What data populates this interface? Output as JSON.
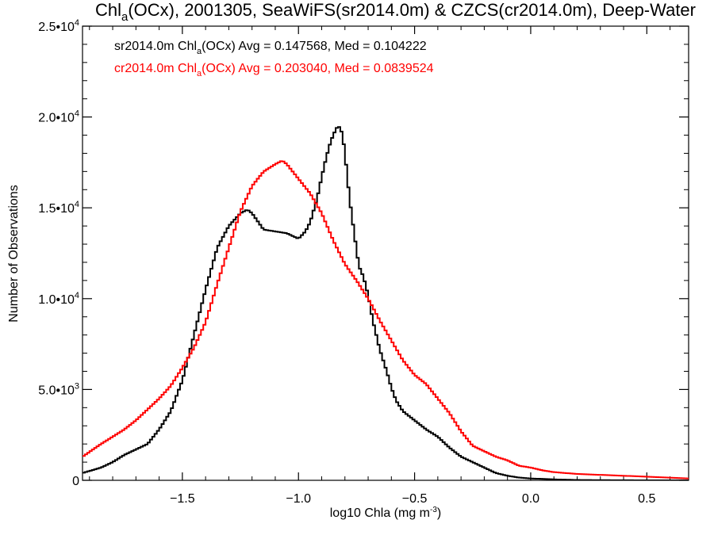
{
  "chart_data": {
    "type": "line",
    "title": {
      "prefix": "Chl",
      "sub": "a",
      "rest": "(OCx), 2001305, SeaWiFS(sr2014.0m) & CZCS(cr2014.0m), Deep-Water"
    },
    "xlabel": {
      "main": "log10 Chla (mg m",
      "sup": "-3",
      "close": ")"
    },
    "ylabel": "Number of Observations",
    "xlim": [
      -1.93,
      0.68
    ],
    "ylim": [
      0,
      25000
    ],
    "grid": false,
    "x_ticks": [
      {
        "value": -1.5,
        "label": "−1.5"
      },
      {
        "value": -1.0,
        "label": "−1.0"
      },
      {
        "value": -0.5,
        "label": "−0.5"
      },
      {
        "value": 0.0,
        "label": "0.0"
      },
      {
        "value": 0.5,
        "label": "0.5"
      }
    ],
    "y_ticks": [
      {
        "value": 0,
        "mant": "0",
        "exp": ""
      },
      {
        "value": 5000,
        "mant": "5.0•10",
        "exp": "3"
      },
      {
        "value": 10000,
        "mant": "1.0•10",
        "exp": "4"
      },
      {
        "value": 15000,
        "mant": "1.5•10",
        "exp": "4"
      },
      {
        "value": 20000,
        "mant": "2.0•10",
        "exp": "4"
      },
      {
        "value": 25000,
        "mant": "2.5•10",
        "exp": "4"
      }
    ],
    "annotations": [
      {
        "color": "#000000",
        "pre": "sr2014.0m Chl",
        "sub": "a",
        "post": "(OCx) Avg = 0.147568, Med = 0.104222"
      },
      {
        "color": "#ff0000",
        "pre": "cr2014.0m Chl",
        "sub": "a",
        "post": "(OCx) Avg = 0.203040, Med = 0.0839524"
      }
    ],
    "series": [
      {
        "color": "#000000",
        "x": [
          -1.93,
          -1.85,
          -1.8,
          -1.75,
          -1.7,
          -1.65,
          -1.6,
          -1.55,
          -1.5,
          -1.45,
          -1.4,
          -1.35,
          -1.3,
          -1.25,
          -1.22,
          -1.2,
          -1.15,
          -1.1,
          -1.05,
          -1.0,
          -0.97,
          -0.95,
          -0.92,
          -0.9,
          -0.88,
          -0.86,
          -0.84,
          -0.83,
          -0.82,
          -0.81,
          -0.8,
          -0.78,
          -0.76,
          -0.74,
          -0.72,
          -0.7,
          -0.68,
          -0.65,
          -0.62,
          -0.6,
          -0.58,
          -0.55,
          -0.52,
          -0.5,
          -0.45,
          -0.4,
          -0.35,
          -0.3,
          -0.25,
          -0.2,
          -0.15,
          -0.1,
          -0.05,
          0.0,
          0.05,
          0.1,
          0.2,
          0.3,
          0.4,
          0.5,
          0.68
        ],
        "values": [
          400,
          700,
          1000,
          1400,
          1700,
          2000,
          2800,
          3800,
          5500,
          8000,
          10500,
          12800,
          14000,
          14700,
          14900,
          14700,
          13800,
          13700,
          13600,
          13300,
          13700,
          14200,
          15500,
          16700,
          17800,
          18700,
          19300,
          19500,
          19400,
          19000,
          18000,
          15500,
          13600,
          11800,
          11200,
          10200,
          8800,
          7200,
          6000,
          5100,
          4400,
          3800,
          3500,
          3300,
          2800,
          2400,
          1800,
          1300,
          1000,
          700,
          400,
          250,
          150,
          100,
          80,
          50,
          20,
          10,
          5,
          0,
          0
        ]
      },
      {
        "color": "#ff0000",
        "x": [
          -1.93,
          -1.85,
          -1.8,
          -1.75,
          -1.7,
          -1.65,
          -1.6,
          -1.55,
          -1.5,
          -1.45,
          -1.4,
          -1.35,
          -1.3,
          -1.25,
          -1.2,
          -1.15,
          -1.1,
          -1.07,
          -1.05,
          -1.0,
          -0.95,
          -0.9,
          -0.85,
          -0.8,
          -0.75,
          -0.7,
          -0.65,
          -0.6,
          -0.55,
          -0.5,
          -0.45,
          -0.4,
          -0.35,
          -0.3,
          -0.25,
          -0.2,
          -0.15,
          -0.1,
          -0.05,
          0.0,
          0.05,
          0.1,
          0.2,
          0.3,
          0.4,
          0.5,
          0.68
        ],
        "values": [
          1300,
          2000,
          2400,
          2800,
          3300,
          3900,
          4500,
          5200,
          6200,
          7300,
          8700,
          10800,
          12800,
          14800,
          16200,
          17000,
          17400,
          17600,
          17400,
          16600,
          15800,
          14700,
          13200,
          11900,
          11000,
          10000,
          8800,
          7700,
          6600,
          5800,
          5300,
          4500,
          3700,
          2700,
          1900,
          1600,
          1300,
          1100,
          800,
          700,
          550,
          450,
          350,
          300,
          250,
          200,
          100
        ]
      }
    ]
  }
}
